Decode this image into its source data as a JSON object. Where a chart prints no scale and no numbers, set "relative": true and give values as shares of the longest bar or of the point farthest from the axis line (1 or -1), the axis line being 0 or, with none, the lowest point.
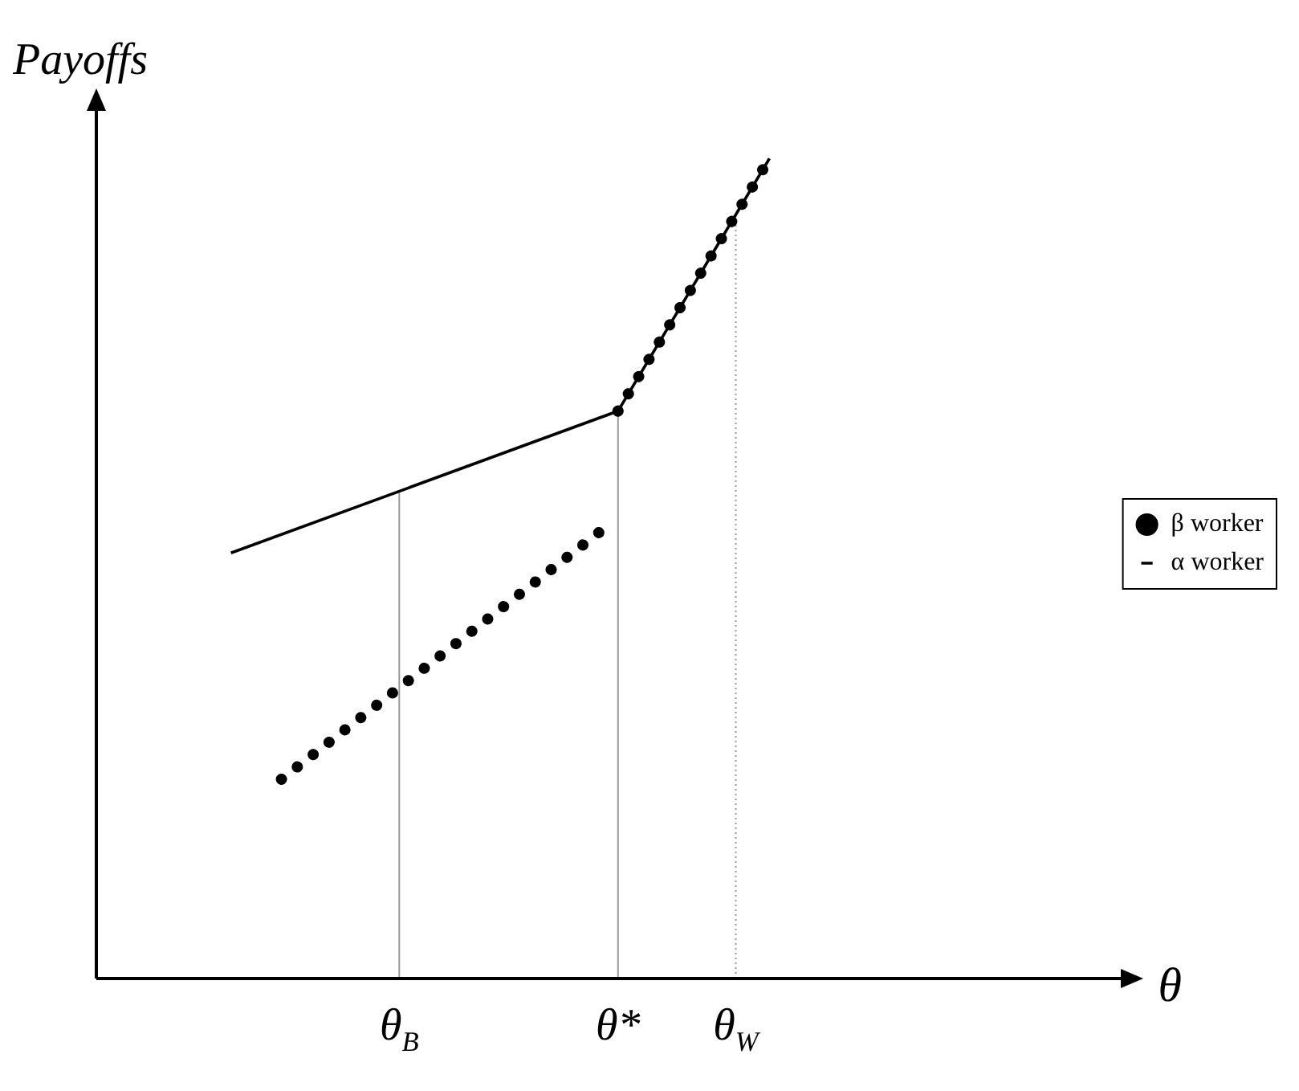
{
  "chart_data": {
    "type": "line",
    "relative": true,
    "ylabel": "Payoffs",
    "xlabel": "θ",
    "categories": [
      null,
      null,
      null,
      null,
      null,
      null,
      null,
      null,
      null,
      null,
      null,
      null,
      null,
      null,
      null,
      null,
      null,
      null,
      "θ$_{B}$",
      null,
      null,
      null,
      null,
      null,
      null,
      null,
      null,
      null,
      null,
      null,
      null,
      "θ*",
      null,
      null,
      null,
      null,
      null,
      null,
      "θ$_{W}$",
      null,
      null,
      null,
      null,
      null,
      null,
      null,
      null,
      null,
      null,
      null,
      null,
      null,
      null,
      null,
      null,
      null,
      null,
      null,
      null,
      null,
      null,
      null
    ],
    "series": [
      {
        "name": "α worker",
        "color": "#000000",
        "line_style": "solid",
        "values": [
          null,
          null,
          null,
          null,
          null,
          null,
          null,
          null,
          0.519,
          null,
          null,
          null,
          null,
          null,
          null,
          null,
          null,
          null,
          null,
          null,
          null,
          null,
          null,
          null,
          null,
          null,
          null,
          null,
          null,
          null,
          null,
          0.692,
          null,
          null,
          null,
          null,
          null,
          null,
          null,
          null,
          1,
          null,
          null,
          null,
          null,
          null,
          null,
          null,
          null,
          null,
          null,
          null,
          null,
          null,
          null,
          null,
          null,
          null,
          null,
          null,
          null,
          null
        ]
      },
      {
        "name": "β worker",
        "color": "#000000",
        "line_style": "dotted",
        "values": [
          null,
          null,
          null,
          null,
          null,
          null,
          null,
          null,
          null,
          null,
          null,
          0.243,
          null,
          null,
          null,
          null,
          null,
          null,
          null,
          null,
          null,
          null,
          null,
          null,
          null,
          null,
          null,
          null,
          null,
          null,
          0.546,
          null,
          null,
          null,
          null,
          null,
          null,
          null,
          null,
          null,
          null,
          null,
          null,
          null,
          null,
          null,
          null,
          null,
          null,
          null,
          null,
          null,
          null,
          null,
          null,
          null,
          null,
          null,
          null,
          null,
          null,
          null
        ]
      },
      {
        "color": "#000000",
        "line_style": "dotted",
        "values": [
          null,
          null,
          null,
          null,
          null,
          null,
          null,
          null,
          null,
          null,
          null,
          null,
          null,
          null,
          null,
          null,
          null,
          null,
          null,
          null,
          null,
          null,
          null,
          null,
          null,
          null,
          null,
          null,
          null,
          null,
          null,
          0.692,
          null,
          null,
          null,
          null,
          null,
          null,
          null,
          null,
          1,
          null,
          null,
          null,
          null,
          null,
          null,
          null,
          null,
          null,
          null,
          null,
          null,
          null,
          null,
          null,
          null,
          null,
          null,
          null,
          null,
          null
        ]
      }
    ],
    "ref_lines": [
      {
        "axis": "x",
        "value": "θ$_{B}$",
        "color": "#999999"
      },
      {
        "axis": "x",
        "value": "θ*",
        "color": "#999999"
      },
      {
        "axis": "x",
        "value": "θ$_{W}$",
        "color": "#999999",
        "line_style": "dotted"
      }
    ],
    "legend": "right",
    "marker": "none"
  }
}
